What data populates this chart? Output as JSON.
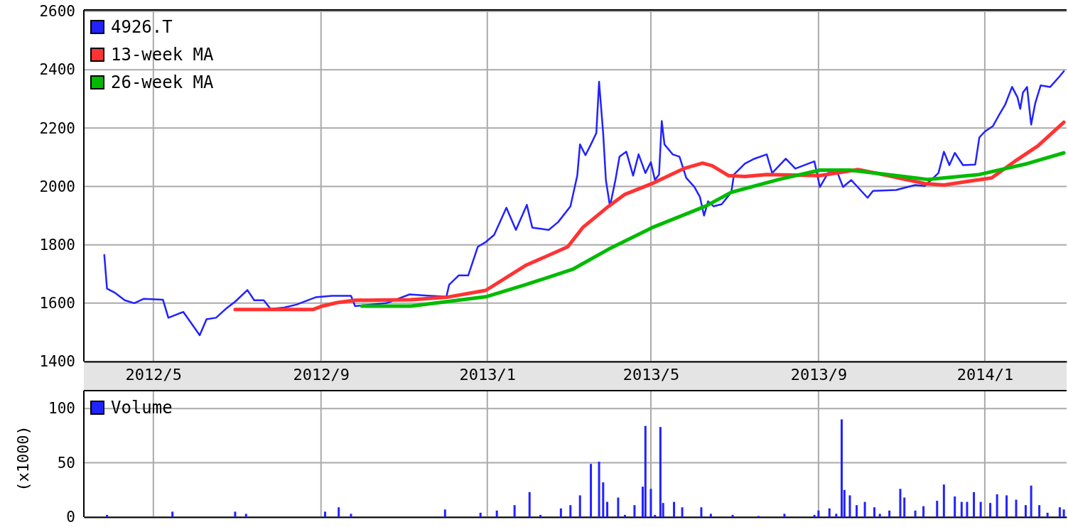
{
  "chart_data": [
    {
      "type": "line",
      "xlim": [
        "2012-03-11",
        "2014-03-02"
      ],
      "ylim": [
        1400,
        2600
      ],
      "xticks": [
        {
          "value": "2012-05-01",
          "label": "2012/5"
        },
        {
          "value": "2012-09-01",
          "label": "2012/9"
        },
        {
          "value": "2013-01-01",
          "label": "2013/1"
        },
        {
          "value": "2013-05-01",
          "label": "2013/5"
        },
        {
          "value": "2013-09-01",
          "label": "2013/9"
        },
        {
          "value": "2014-01-01",
          "label": "2014/1"
        }
      ],
      "yticks": [
        1400,
        1600,
        1800,
        2000,
        2200,
        2400,
        2600
      ],
      "grid": true,
      "legend": "top left",
      "marker": "none",
      "line_style": "solid",
      "series": [
        {
          "name": "4926.T",
          "color": "#2222ff",
          "x": [
            "2012-03-26",
            "2012-03-28",
            "2012-04-03",
            "2012-04-10",
            "2012-04-17",
            "2012-04-24",
            "2012-05-08",
            "2012-05-12",
            "2012-05-23",
            "2012-06-01",
            "2012-06-04",
            "2012-06-09",
            "2012-06-16",
            "2012-06-23",
            "2012-06-30",
            "2012-07-09",
            "2012-07-14",
            "2012-07-21",
            "2012-07-26",
            "2012-08-05",
            "2012-08-14",
            "2012-08-28",
            "2012-09-09",
            "2012-09-23",
            "2012-09-26",
            "2012-10-19",
            "2012-11-05",
            "2012-11-20",
            "2012-12-02",
            "2012-12-04",
            "2012-12-11",
            "2012-12-18",
            "2012-12-25",
            "2012-12-31",
            "2013-01-06",
            "2013-01-15",
            "2013-01-22",
            "2013-01-30",
            "2013-02-03",
            "2013-02-15",
            "2013-02-22",
            "2013-03-03",
            "2013-03-08",
            "2013-03-10",
            "2013-03-14",
            "2013-03-18",
            "2013-03-22",
            "2013-03-24",
            "2013-03-27",
            "2013-03-29",
            "2013-04-01",
            "2013-04-05",
            "2013-04-08",
            "2013-04-13",
            "2013-04-18",
            "2013-04-22",
            "2013-04-27",
            "2013-05-01",
            "2013-05-04",
            "2013-05-07",
            "2013-05-09",
            "2013-05-11",
            "2013-05-17",
            "2013-05-22",
            "2013-05-27",
            "2013-06-02",
            "2013-06-06",
            "2013-06-09",
            "2013-06-12",
            "2013-06-16",
            "2013-06-22",
            "2013-06-29",
            "2013-07-01",
            "2013-07-09",
            "2013-07-16",
            "2013-07-25",
            "2013-07-29",
            "2013-08-08",
            "2013-08-15",
            "2013-08-29",
            "2013-09-02",
            "2013-09-08",
            "2013-09-15",
            "2013-09-19",
            "2013-09-25",
            "2013-10-07",
            "2013-10-11",
            "2013-10-28",
            "2013-11-11",
            "2013-11-18",
            "2013-11-23",
            "2013-11-28",
            "2013-12-02",
            "2013-12-06",
            "2013-12-10",
            "2013-12-16",
            "2013-12-25",
            "2013-12-28",
            "2014-01-01",
            "2014-01-07",
            "2014-01-11",
            "2014-01-16",
            "2014-01-21",
            "2014-01-25",
            "2014-01-27",
            "2014-01-29",
            "2014-02-01",
            "2014-02-04",
            "2014-02-07",
            "2014-02-11",
            "2014-02-18",
            "2014-02-25",
            "2014-02-28"
          ],
          "values": [
            1765,
            1650,
            1635,
            1610,
            1600,
            1615,
            1612,
            1550,
            1570,
            1510,
            1490,
            1545,
            1550,
            1580,
            1605,
            1645,
            1610,
            1610,
            1580,
            1585,
            1595,
            1620,
            1625,
            1625,
            1590,
            1600,
            1630,
            1625,
            1622,
            1663,
            1695,
            1695,
            1793,
            1810,
            1834,
            1927,
            1851,
            1937,
            1859,
            1851,
            1878,
            1932,
            2037,
            2144,
            2107,
            2144,
            2183,
            2359,
            2183,
            2022,
            1932,
            2022,
            2102,
            2119,
            2037,
            2110,
            2046,
            2083,
            2022,
            2041,
            2224,
            2144,
            2110,
            2102,
            2029,
            1998,
            1964,
            1900,
            1949,
            1932,
            1939,
            1980,
            2041,
            2078,
            2095,
            2110,
            2046,
            2095,
            2061,
            2086,
            1998,
            2046,
            2046,
            1998,
            2022,
            1961,
            1985,
            1988,
            2005,
            2002,
            2024,
            2046,
            2119,
            2073,
            2115,
            2073,
            2075,
            2168,
            2188,
            2207,
            2241,
            2281,
            2341,
            2305,
            2266,
            2322,
            2341,
            2212,
            2285,
            2346,
            2341,
            2378,
            2395
          ]
        },
        {
          "name": "13-week MA",
          "color": "#ff3333",
          "x": [
            "2012-06-30",
            "2012-08-26",
            "2012-09-02",
            "2012-09-13",
            "2012-09-26",
            "2012-11-06",
            "2012-12-02",
            "2012-12-31",
            "2013-01-29",
            "2013-03-01",
            "2013-03-12",
            "2013-03-31",
            "2013-04-12",
            "2013-05-02",
            "2013-05-25",
            "2013-06-08",
            "2013-06-15",
            "2013-06-27",
            "2013-07-09",
            "2013-07-25",
            "2013-09-02",
            "2013-09-30",
            "2013-10-25",
            "2013-11-18",
            "2013-12-02",
            "2013-12-19",
            "2014-01-06",
            "2014-01-23",
            "2014-02-09",
            "2014-02-28"
          ],
          "values": [
            1578,
            1578,
            1590,
            1602,
            1610,
            1612,
            1620,
            1644,
            1729,
            1793,
            1859,
            1932,
            1973,
            2010,
            2061,
            2080,
            2071,
            2037,
            2034,
            2041,
            2037,
            2058,
            2034,
            2010,
            2005,
            2017,
            2029,
            2086,
            2139,
            2220
          ]
        },
        {
          "name": "26-week MA",
          "color": "#00bb00",
          "x": [
            "2012-10-01",
            "2012-11-06",
            "2012-12-31",
            "2013-01-29",
            "2013-03-05",
            "2013-03-31",
            "2013-05-02",
            "2013-06-10",
            "2013-06-29",
            "2013-08-03",
            "2013-09-02",
            "2013-09-24",
            "2013-10-28",
            "2013-11-20",
            "2013-12-28",
            "2014-02-01",
            "2014-02-28"
          ],
          "values": [
            1590,
            1590,
            1622,
            1663,
            1717,
            1785,
            1859,
            1932,
            1980,
            2024,
            2056,
            2056,
            2037,
            2024,
            2041,
            2078,
            2115
          ]
        }
      ]
    },
    {
      "type": "bar",
      "ylabel": "(x1000)",
      "xlim": [
        "2012-03-11",
        "2014-03-02"
      ],
      "ylim": [
        0,
        108
      ],
      "xticks": [
        {
          "value": "2012-05-01",
          "label": null
        },
        {
          "value": "2012-09-01",
          "label": null
        },
        {
          "value": "2013-01-01",
          "label": null
        },
        {
          "value": "2013-05-01",
          "label": null
        },
        {
          "value": "2013-09-01",
          "label": null
        },
        {
          "value": "2014-01-01",
          "label": null
        }
      ],
      "yticks": [
        0,
        50,
        100
      ],
      "grid": true,
      "legend": "top left",
      "tick_labels": "y",
      "series": [
        {
          "name": "Volume",
          "color": "#2222ff",
          "x": [
            "2012-03-28",
            "2012-05-15",
            "2012-06-30",
            "2012-07-08",
            "2012-09-04",
            "2012-09-14",
            "2012-09-23",
            "2012-12-01",
            "2012-12-27",
            "2013-01-08",
            "2013-01-21",
            "2013-02-01",
            "2013-02-09",
            "2013-02-24",
            "2013-03-03",
            "2013-03-10",
            "2013-03-18",
            "2013-03-24",
            "2013-03-27",
            "2013-03-30",
            "2013-04-07",
            "2013-04-12",
            "2013-04-19",
            "2013-04-25",
            "2013-04-27",
            "2013-05-01",
            "2013-05-04",
            "2013-05-08",
            "2013-05-10",
            "2013-05-18",
            "2013-05-24",
            "2013-06-07",
            "2013-06-14",
            "2013-06-30",
            "2013-07-19",
            "2013-08-07",
            "2013-08-29",
            "2013-09-01",
            "2013-09-09",
            "2013-09-14",
            "2013-09-18",
            "2013-09-20",
            "2013-09-24",
            "2013-09-29",
            "2013-10-05",
            "2013-10-12",
            "2013-10-16",
            "2013-10-23",
            "2013-10-31",
            "2013-11-03",
            "2013-11-11",
            "2013-11-17",
            "2013-11-27",
            "2013-12-02",
            "2013-12-10",
            "2013-12-15",
            "2013-12-19",
            "2013-12-24",
            "2013-12-29",
            "2014-01-05",
            "2014-01-10",
            "2014-01-17",
            "2014-01-24",
            "2014-01-31",
            "2014-02-04",
            "2014-02-10",
            "2014-02-16",
            "2014-02-25",
            "2014-02-28"
          ],
          "values": [
            2,
            5,
            5,
            3,
            5,
            9,
            3,
            7,
            4,
            6,
            11,
            23,
            2,
            8,
            11,
            20,
            49,
            51,
            32,
            14,
            18,
            2,
            11,
            28,
            84,
            26,
            2,
            83,
            13,
            14,
            9,
            9,
            3,
            2,
            1,
            3,
            2,
            6,
            8,
            3,
            90,
            25,
            20,
            11,
            14,
            9,
            3,
            6,
            26,
            18,
            6,
            10,
            15,
            30,
            19,
            14,
            14,
            23,
            14,
            13,
            21,
            20,
            16,
            11,
            29,
            11,
            4,
            9,
            7
          ]
        }
      ]
    }
  ]
}
